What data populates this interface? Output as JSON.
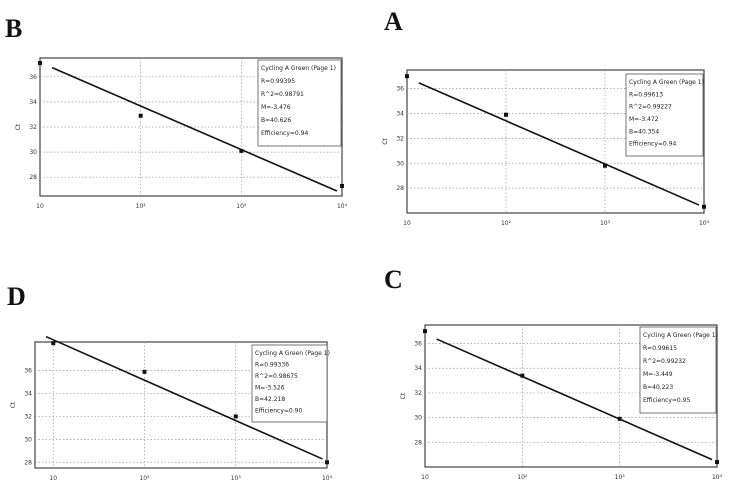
{
  "panels": [
    {
      "letter": "B",
      "ylabel": "Ct",
      "xticks": [
        "10",
        "10²",
        "10³",
        "10⁴"
      ],
      "yticks": [
        "28",
        "30",
        "32",
        "34",
        "36"
      ],
      "legend": [
        "Cycling A Green (Page 1)",
        "R=0.99395",
        "R^2=0.98791",
        "M=-3.476",
        "B=40.626",
        "Efficiency=0.94"
      ]
    },
    {
      "letter": "A",
      "ylabel": "Ct",
      "xticks": [
        "10",
        "10²",
        "10³",
        "10⁴"
      ],
      "yticks": [
        "28",
        "30",
        "32",
        "34",
        "36"
      ],
      "legend": [
        "Cycling A Green (Page 1)",
        "R=0.99613",
        "R^2=0.99227",
        "M=-3.472",
        "B=40.354",
        "Efficiency=0.94"
      ]
    },
    {
      "letter": "D",
      "ylabel": "Ct",
      "xticks": [
        "10",
        "10²",
        "10³",
        "10⁴"
      ],
      "yticks": [
        "28",
        "30",
        "32",
        "34",
        "36"
      ],
      "legend": [
        "Cycling A Green (Page 1)",
        "R=0.99336",
        "R^2=0.98675",
        "M=-3.526",
        "B=42.218",
        "Efficiency=0.90"
      ]
    },
    {
      "letter": "C",
      "ylabel": "Ct",
      "xticks": [
        "10",
        "10²",
        "10³",
        "10⁴"
      ],
      "yticks": [
        "28",
        "30",
        "32",
        "34",
        "36"
      ],
      "legend": [
        "Cycling A Green (Page 1)",
        "R=0.99615",
        "R^2=0.99232",
        "M=-3.449",
        "B=40.223",
        "Efficiency=0.95"
      ]
    }
  ],
  "chart_data": [
    {
      "panel": "B",
      "type": "scatter",
      "x": [
        1,
        2,
        3,
        4
      ],
      "y": [
        37.1,
        32.9,
        30.1,
        27.3
      ],
      "fit": {
        "slope": -3.476,
        "intercept": 40.626
      },
      "xscale": "log10",
      "xlim": [
        1,
        4
      ],
      "ylim": [
        26.5,
        37.5
      ],
      "xlabel": "",
      "ylabel": "Ct",
      "grid": true,
      "legend": "top-right"
    },
    {
      "panel": "A",
      "type": "scatter",
      "x": [
        1,
        2,
        3,
        4
      ],
      "y": [
        37.0,
        33.9,
        29.8,
        26.5
      ],
      "fit": {
        "slope": -3.472,
        "intercept": 40.354
      },
      "xscale": "log10",
      "xlim": [
        1,
        4
      ],
      "ylim": [
        26,
        37.5
      ],
      "xlabel": "",
      "ylabel": "Ct",
      "grid": true,
      "legend": "top-right"
    },
    {
      "panel": "D",
      "type": "scatter",
      "x": [
        1,
        2,
        3,
        4
      ],
      "y": [
        38.4,
        35.9,
        32.0,
        28.0
      ],
      "fit": {
        "slope": -3.526,
        "intercept": 42.218
      },
      "xscale": "log10",
      "xlim": [
        0.8,
        4
      ],
      "ylim": [
        27.5,
        38.5
      ],
      "xlabel": "",
      "ylabel": "Ct",
      "grid": true,
      "legend": "top-right"
    },
    {
      "panel": "C",
      "type": "scatter",
      "x": [
        1,
        2,
        3,
        4
      ],
      "y": [
        37.0,
        33.4,
        29.9,
        26.4
      ],
      "fit": {
        "slope": -3.449,
        "intercept": 40.223
      },
      "xscale": "log10",
      "xlim": [
        1,
        4
      ],
      "ylim": [
        26,
        37.5
      ],
      "xlabel": "",
      "ylabel": "Ct",
      "grid": true,
      "legend": "top-right"
    }
  ]
}
